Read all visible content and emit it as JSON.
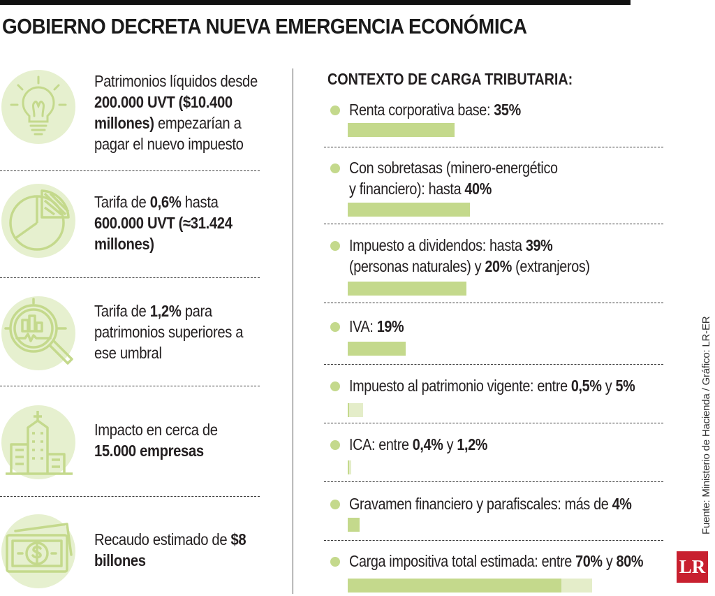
{
  "title": "GOBIERNO DECRETA NUEVA EMERGENCIA ECONÓMICA",
  "left_items": [
    {
      "icon": "lightbulb-icon",
      "segments": [
        {
          "t": "Patrimonios líquidos desde ",
          "b": false
        },
        {
          "t": "200.000 UVT ($10.400 millones)",
          "b": true
        },
        {
          "t": " empezarían a pagar el nuevo impuesto",
          "b": false
        }
      ]
    },
    {
      "icon": "pie-chart-icon",
      "segments": [
        {
          "t": "Tarifa de ",
          "b": false
        },
        {
          "t": "0,6%",
          "b": true
        },
        {
          "t": " hasta ",
          "b": false
        },
        {
          "t": "600.000 UVT (≈31.424 millones)",
          "b": true
        }
      ]
    },
    {
      "icon": "magnifier-chart-icon",
      "segments": [
        {
          "t": "Tarifa de ",
          "b": false
        },
        {
          "t": "1,2%",
          "b": true
        },
        {
          "t": " para patrimonios superiores a ese umbral",
          "b": false
        }
      ]
    },
    {
      "icon": "buildings-icon",
      "segments": [
        {
          "t": "Impacto en cerca de ",
          "b": false
        },
        {
          "t": "15.000 empresas",
          "b": true
        }
      ]
    },
    {
      "icon": "money-bill-icon",
      "segments": [
        {
          "t": "Recaudo estimado de ",
          "b": false
        },
        {
          "t": "$8 billones",
          "b": true
        }
      ]
    }
  ],
  "chart_data": {
    "type": "bar",
    "title": "CONTEXTO DE CARGA TRIBUTARIA:",
    "unit": "%",
    "items": [
      {
        "label_lines": [
          [
            {
              "t": "Renta corporativa base: ",
              "b": false
            },
            {
              "t": "35%",
              "b": true
            }
          ]
        ],
        "values": [
          35
        ]
      },
      {
        "label_lines": [
          [
            {
              "t": "Con sobretasas (minero-energético",
              "b": false
            }
          ],
          [
            {
              "t": "y financiero): hasta ",
              "b": false
            },
            {
              "t": "40%",
              "b": true
            }
          ]
        ],
        "values": [
          40
        ]
      },
      {
        "label_lines": [
          [
            {
              "t": "Impuesto a dividendos: hasta ",
              "b": false
            },
            {
              "t": "39%",
              "b": true
            }
          ],
          [
            {
              "t": "(personas naturales) y ",
              "b": false
            },
            {
              "t": "20%",
              "b": true
            },
            {
              "t": " (extranjeros)",
              "b": false
            }
          ]
        ],
        "values": [
          39,
          20
        ]
      },
      {
        "label_lines": [
          [
            {
              "t": "IVA: ",
              "b": false
            },
            {
              "t": "19%",
              "b": true
            }
          ]
        ],
        "values": [
          19
        ]
      },
      {
        "label_lines": [
          [
            {
              "t": "Impuesto al patrimonio vigente: entre ",
              "b": false
            },
            {
              "t": "0,5%",
              "b": true
            },
            {
              "t": " y ",
              "b": false
            },
            {
              "t": "5%",
              "b": true
            }
          ]
        ],
        "values": [
          0.5,
          5
        ]
      },
      {
        "label_lines": [
          [
            {
              "t": "ICA: entre ",
              "b": false
            },
            {
              "t": "0,4%",
              "b": true
            },
            {
              "t": " y ",
              "b": false
            },
            {
              "t": "1,2%",
              "b": true
            }
          ]
        ],
        "values": [
          0.4,
          1.2
        ]
      },
      {
        "label_lines": [
          [
            {
              "t": "Gravamen financiero y parafiscales: más de ",
              "b": false
            },
            {
              "t": "4%",
              "b": true
            }
          ]
        ],
        "values": [
          4
        ]
      },
      {
        "label_lines": [
          [
            {
              "t": "Carga impositiva total estimada: entre ",
              "b": false
            },
            {
              "t": "70%",
              "b": true
            },
            {
              "t": " y ",
              "b": false
            },
            {
              "t": "80%",
              "b": true
            }
          ]
        ],
        "values": [
          70,
          80
        ]
      }
    ]
  },
  "source": "Fuente: Ministerio de Hacienda / Gráfico: LR-ER",
  "logo_text": "LR",
  "colors": {
    "accent": "#c4d98c",
    "accent_light": "#e4edc9",
    "icon_bg": "#e6f0cf",
    "icon_stroke": "#c4d98c",
    "logo": "#c8202f"
  }
}
